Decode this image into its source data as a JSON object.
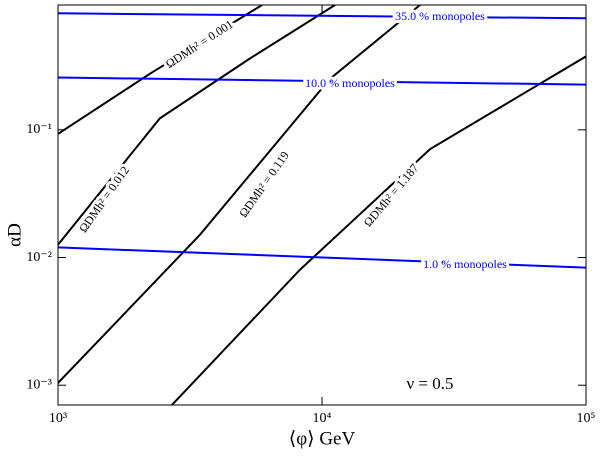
{
  "chart_data": {
    "type": "line",
    "xlabel": "⟨φ⟩ GeV",
    "ylabel": "αD",
    "annotation": "ν = 0.5",
    "xscale": "log",
    "yscale": "log",
    "xlim": [
      1000,
      100000
    ],
    "ylim": [
      0.0007,
      0.95
    ],
    "xticks": [
      {
        "value": 1000,
        "label": "10³"
      },
      {
        "value": 10000,
        "label": "10⁴"
      },
      {
        "value": 100000,
        "label": "10⁵"
      }
    ],
    "yticks": [
      {
        "value": 0.001,
        "label": "10⁻³"
      },
      {
        "value": 0.01,
        "label": "10⁻²"
      },
      {
        "value": 0.1,
        "label": "10⁻¹"
      }
    ],
    "series": [
      {
        "name": "ΩDMh² = 0.001",
        "color": "#000000",
        "x": [
          1000,
          2230,
          5930
        ],
        "values": [
          0.093,
          0.275,
          0.95
        ]
      },
      {
        "name": "ΩDMh² = 0.012",
        "color": "#000000",
        "x": [
          1000,
          2430,
          5340,
          11200
        ],
        "values": [
          0.0126,
          0.123,
          0.363,
          0.95
        ]
      },
      {
        "name": "ΩDMh² = 0.119",
        "color": "#000000",
        "x": [
          1000,
          3450,
          10700,
          23500
        ],
        "values": [
          0.00104,
          0.0151,
          0.25,
          0.95
        ]
      },
      {
        "name": "ΩDMh² = 1.187",
        "color": "#000000",
        "x": [
          2700,
          8260,
          25700,
          100000
        ],
        "values": [
          0.0007,
          0.00805,
          0.0708,
          0.376
        ]
      },
      {
        "name": "35.0 % monopoles",
        "color": "#0000ff",
        "x": [
          1000,
          100000
        ],
        "values": [
          0.818,
          0.748
        ]
      },
      {
        "name": "10.0 % monopoles",
        "color": "#0000ff",
        "x": [
          1000,
          100000
        ],
        "values": [
          0.257,
          0.226
        ]
      },
      {
        "name": "1.0 % monopoles",
        "color": "#0000ff",
        "x": [
          1000,
          100000
        ],
        "values": [
          0.012,
          0.00834
        ]
      }
    ]
  }
}
